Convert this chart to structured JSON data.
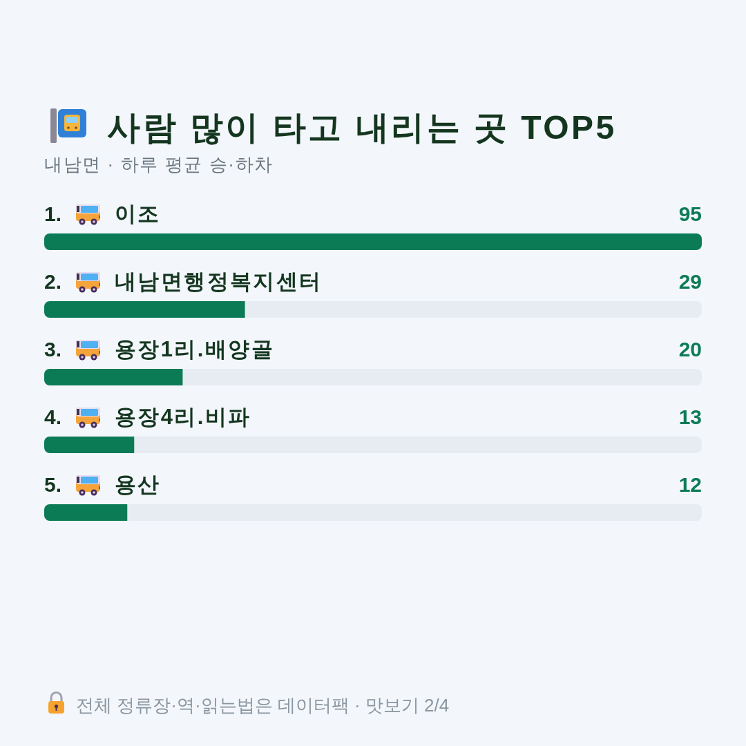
{
  "chart_data": {
    "type": "bar",
    "orientation": "horizontal",
    "title": "사람 많이 타고 내리는 곳 TOP5",
    "subtitle": "내남면 · 하루 평균 승·하차",
    "categories": [
      "1. 이조",
      "2. 내남면행정복지센터",
      "3. 용장1리.배양골",
      "4. 용장4리.비파",
      "5. 용산"
    ],
    "values": [
      95,
      29,
      20,
      13,
      12
    ],
    "color": "#0b7b55",
    "data_labels": true,
    "annotations": [
      "전체 정류장·역·읽는법은 데이터팩 · 맛보기 2/4"
    ]
  }
}
